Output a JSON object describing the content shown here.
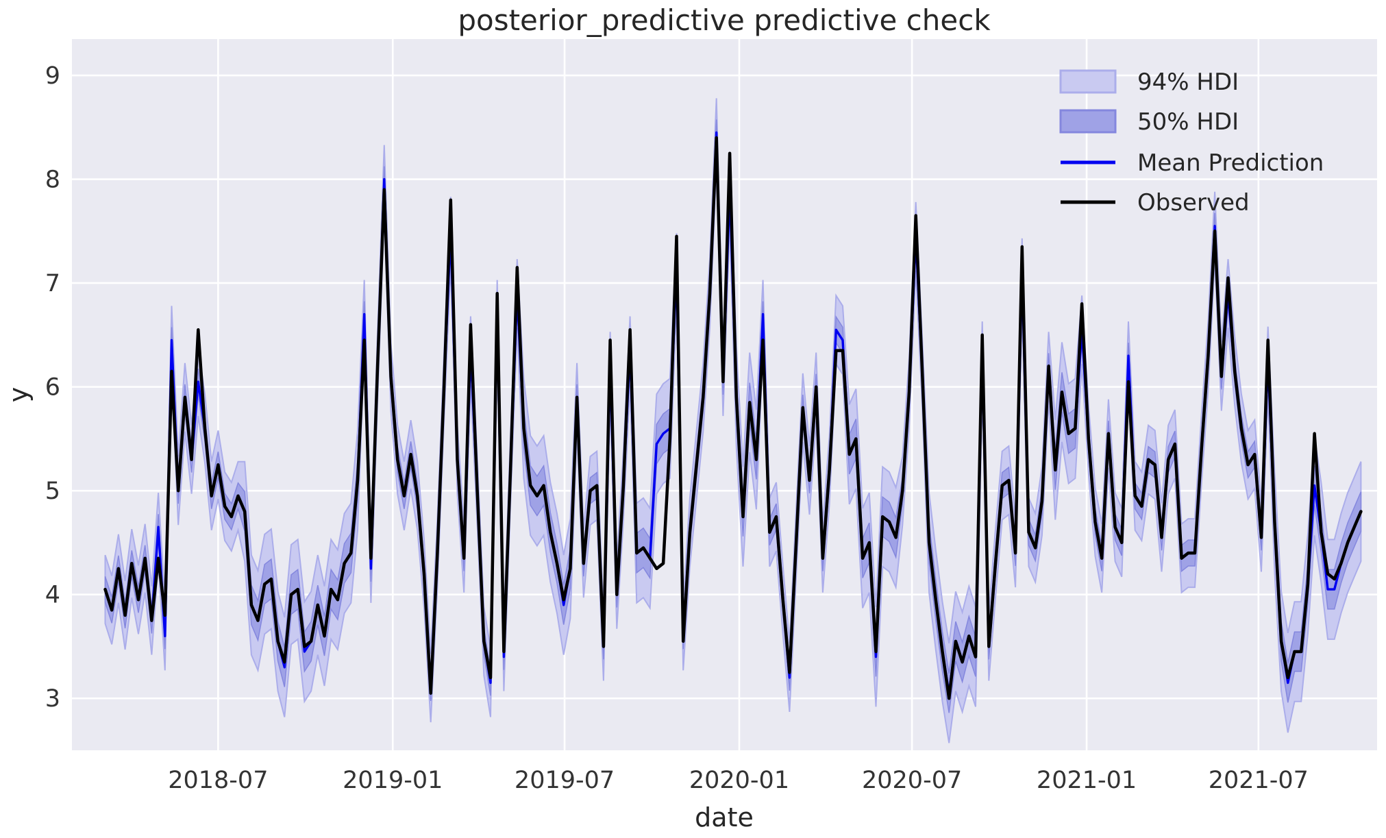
{
  "title": "posterior_predictive predictive check",
  "axis": {
    "xlabel": "date",
    "ylabel": "y"
  },
  "legend": {
    "items": [
      {
        "label": "94% HDI",
        "type": "patch",
        "fill": "#c9caf1",
        "edge": "#abadea"
      },
      {
        "label": "50% HDI",
        "type": "patch",
        "fill": "#9fa2e6",
        "edge": "#8487de"
      },
      {
        "label": "Mean Prediction",
        "type": "line",
        "color": "#0000f0"
      },
      {
        "label": "Observed",
        "type": "line",
        "color": "#000000"
      }
    ],
    "position": "upper right"
  },
  "colors": {
    "figure_bg": "#ffffff",
    "axes_bg": "#eaeaf2",
    "grid": "#ffffff",
    "hdi94_fill": "#c9caf1",
    "hdi94_edge": "#abadea",
    "hdi50_fill": "#9fa2e6",
    "hdi50_edge": "#8487de",
    "mean_line": "#0000f0",
    "observed_line": "#000000",
    "text": "#262626",
    "tick_text": "#333333"
  },
  "chart_data": {
    "type": "line",
    "title": "posterior_predictive predictive check",
    "xlabel": "date",
    "ylabel": "y",
    "grid": true,
    "legend_position": "upper right",
    "x_start_date": "2018-03-04",
    "x_freq_days": 7,
    "xlim": [
      "2018-01-28",
      "2021-11-03"
    ],
    "ylim": [
      2.5,
      9.35
    ],
    "yticks": [
      3,
      4,
      5,
      6,
      7,
      8,
      9
    ],
    "xticks": [
      {
        "label": "2018-07",
        "date": "2018-07-01"
      },
      {
        "label": "2019-01",
        "date": "2019-01-01"
      },
      {
        "label": "2019-07",
        "date": "2019-07-01"
      },
      {
        "label": "2020-01",
        "date": "2020-01-01"
      },
      {
        "label": "2020-07",
        "date": "2020-07-01"
      },
      {
        "label": "2021-01",
        "date": "2021-01-01"
      },
      {
        "label": "2021-07",
        "date": "2021-07-01"
      }
    ],
    "series": [
      {
        "name": "Observed",
        "color": "#000000",
        "width": 4.5,
        "values": [
          4.05,
          3.85,
          4.25,
          3.8,
          4.3,
          3.95,
          4.35,
          3.75,
          4.35,
          3.8,
          6.15,
          5.0,
          5.9,
          5.3,
          6.55,
          5.6,
          4.95,
          5.25,
          4.85,
          4.75,
          4.95,
          4.8,
          3.9,
          3.75,
          4.1,
          4.15,
          3.55,
          3.35,
          4.0,
          4.05,
          3.5,
          3.55,
          3.9,
          3.6,
          4.05,
          3.95,
          4.3,
          4.4,
          5.1,
          6.45,
          4.35,
          6.2,
          7.9,
          6.1,
          5.3,
          4.95,
          5.35,
          4.95,
          4.2,
          3.05,
          4.4,
          6.0,
          7.8,
          5.3,
          4.35,
          6.6,
          5.0,
          3.55,
          3.2,
          6.9,
          3.45,
          5.2,
          7.15,
          5.6,
          5.05,
          4.95,
          5.05,
          4.6,
          4.3,
          3.95,
          4.25,
          5.9,
          4.3,
          5.0,
          5.05,
          3.5,
          6.45,
          4.0,
          5.05,
          6.55,
          4.4,
          4.45,
          4.35,
          4.25,
          4.3,
          5.5,
          7.45,
          3.55,
          4.6,
          5.25,
          5.9,
          6.9,
          8.4,
          6.05,
          8.25,
          5.9,
          4.75,
          5.85,
          5.3,
          6.45,
          4.6,
          4.75,
          3.95,
          3.25,
          4.5,
          5.8,
          5.1,
          6.0,
          4.35,
          5.2,
          6.35,
          6.35,
          5.35,
          5.5,
          4.35,
          4.5,
          3.45,
          4.75,
          4.7,
          4.55,
          5.0,
          5.95,
          7.65,
          6.1,
          4.5,
          3.95,
          3.45,
          3.0,
          3.55,
          3.35,
          3.6,
          3.4,
          6.5,
          3.5,
          4.3,
          5.05,
          5.1,
          4.4,
          7.35,
          4.6,
          4.45,
          4.9,
          6.2,
          5.2,
          5.95,
          5.55,
          5.6,
          6.8,
          5.5,
          4.7,
          4.35,
          5.55,
          4.65,
          4.5,
          6.05,
          4.95,
          4.85,
          5.3,
          5.25,
          4.55,
          5.3,
          5.45,
          4.35,
          4.4,
          4.4,
          5.4,
          6.3,
          7.5,
          6.1,
          7.05,
          6.15,
          5.6,
          5.25,
          5.35,
          4.55,
          6.45,
          4.7,
          3.55,
          3.2,
          3.45,
          3.45,
          4.1,
          5.55,
          4.6,
          4.2,
          4.15,
          4.3,
          4.5,
          4.65,
          4.8
        ]
      },
      {
        "name": "Mean Prediction",
        "color": "#0000f0",
        "width": 3.4,
        "values": [
          4.05,
          3.85,
          4.25,
          3.8,
          4.3,
          3.95,
          4.35,
          3.75,
          4.65,
          3.6,
          6.45,
          5.0,
          5.9,
          5.3,
          6.05,
          5.6,
          4.95,
          5.25,
          4.85,
          4.75,
          4.95,
          4.8,
          3.9,
          3.75,
          4.1,
          4.15,
          3.55,
          3.3,
          4.0,
          4.05,
          3.45,
          3.55,
          3.9,
          3.6,
          4.05,
          3.95,
          4.3,
          4.4,
          5.1,
          6.7,
          4.25,
          6.2,
          8.0,
          6.1,
          5.3,
          4.95,
          5.35,
          4.95,
          4.2,
          3.1,
          4.4,
          6.0,
          7.5,
          5.3,
          4.35,
          6.35,
          5.0,
          3.55,
          3.15,
          6.7,
          3.4,
          5.2,
          6.9,
          5.6,
          5.05,
          4.95,
          5.05,
          4.6,
          4.3,
          3.9,
          4.25,
          5.9,
          4.3,
          5.0,
          5.05,
          3.5,
          6.2,
          4.0,
          5.05,
          6.35,
          4.4,
          4.45,
          4.35,
          5.45,
          5.55,
          5.6,
          7.15,
          3.6,
          4.6,
          5.25,
          5.9,
          6.9,
          8.45,
          6.05,
          7.9,
          5.9,
          4.75,
          5.85,
          5.3,
          6.7,
          4.6,
          4.75,
          3.95,
          3.2,
          4.5,
          5.8,
          5.1,
          6.0,
          4.35,
          5.2,
          6.55,
          6.45,
          5.35,
          5.5,
          4.35,
          4.5,
          3.4,
          4.75,
          4.7,
          4.55,
          5.0,
          5.95,
          7.45,
          6.1,
          4.5,
          3.95,
          3.45,
          3.05,
          3.55,
          3.35,
          3.6,
          3.4,
          6.3,
          3.5,
          4.3,
          5.05,
          5.1,
          4.4,
          7.1,
          4.6,
          4.45,
          4.9,
          6.2,
          5.2,
          5.95,
          5.55,
          5.6,
          6.55,
          5.5,
          4.7,
          4.35,
          5.55,
          4.65,
          4.5,
          6.3,
          4.95,
          4.85,
          5.3,
          5.25,
          4.55,
          5.3,
          5.45,
          4.35,
          4.4,
          4.4,
          5.4,
          6.3,
          7.55,
          6.1,
          6.9,
          6.15,
          5.6,
          5.25,
          5.35,
          4.55,
          6.25,
          4.7,
          3.55,
          3.15,
          3.45,
          3.45,
          4.1,
          5.05,
          4.6,
          4.05,
          4.05,
          4.3,
          4.5,
          4.65,
          4.8
        ]
      }
    ],
    "bands": {
      "center_series": "Mean Prediction",
      "hdi94": {
        "label": "94% HDI",
        "halfwidth": 0.33,
        "halfwidth_wide": 0.48,
        "wide_regions": [
          [
            21,
            38
          ],
          [
            63,
            70
          ],
          [
            80,
            85
          ],
          [
            95,
            98
          ],
          [
            112,
            119
          ],
          [
            124,
            131
          ],
          [
            143,
            146
          ],
          [
            176,
            189
          ]
        ],
        "fill": "#c9caf1",
        "edge": "#abadea"
      },
      "hdi50": {
        "label": "50% HDI",
        "halfwidth": 0.125,
        "halfwidth_wide": 0.19,
        "wide_regions": [
          [
            21,
            38
          ],
          [
            63,
            70
          ],
          [
            80,
            85
          ],
          [
            95,
            98
          ],
          [
            112,
            119
          ],
          [
            124,
            131
          ],
          [
            143,
            146
          ],
          [
            176,
            189
          ]
        ],
        "fill": "#9fa2e6",
        "edge": "#8487de"
      }
    }
  }
}
